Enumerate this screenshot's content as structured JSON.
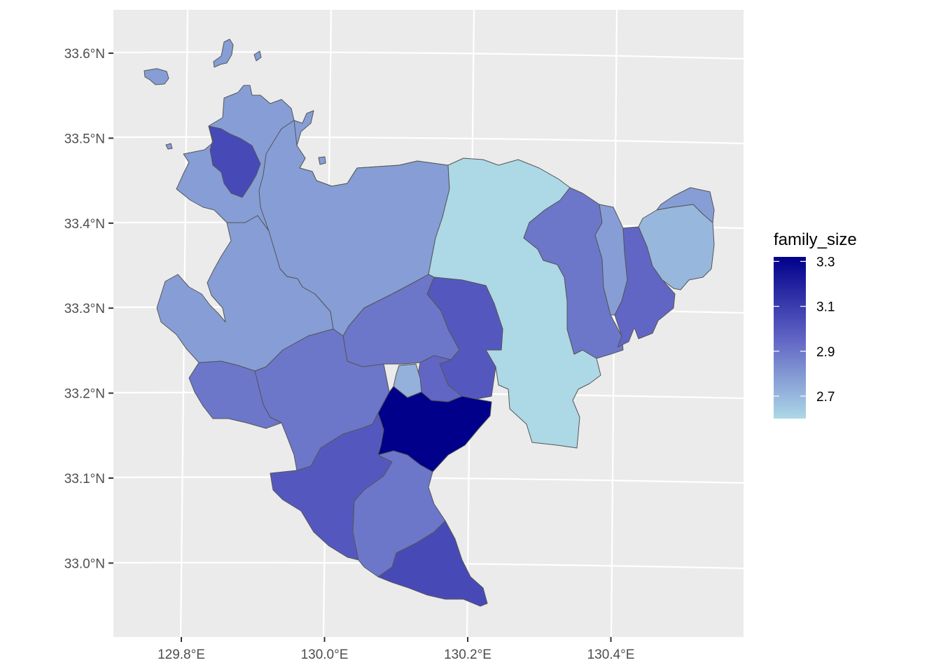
{
  "map": {
    "lat_ticks": [
      {
        "value": 33.6,
        "label": "33.6°N"
      },
      {
        "value": 33.5,
        "label": "33.5°N"
      },
      {
        "value": 33.4,
        "label": "33.4°N"
      },
      {
        "value": 33.3,
        "label": "33.3°N"
      },
      {
        "value": 33.2,
        "label": "33.2°N"
      },
      {
        "value": 33.1,
        "label": "33.1°N"
      },
      {
        "value": 33.0,
        "label": "33.0°N"
      }
    ],
    "lon_ticks": [
      {
        "value": 129.8,
        "label": "129.8°E"
      },
      {
        "value": 130.0,
        "label": "130.0°E"
      },
      {
        "value": 130.2,
        "label": "130.2°E"
      },
      {
        "value": 130.4,
        "label": "130.4°E"
      }
    ],
    "legend": {
      "title": "family_size",
      "low_color": "#add8e6",
      "high_color": "#00008b",
      "min": 2.6,
      "max": 3.32,
      "ticks": [
        {
          "value": 3.3,
          "label": "3.3"
        },
        {
          "value": 3.1,
          "label": "3.1"
        },
        {
          "value": 2.9,
          "label": "2.9"
        },
        {
          "value": 2.7,
          "label": "2.7"
        }
      ]
    },
    "colors": {
      "panel": "#ebebeb",
      "grid": "#ffffff",
      "border": "#555555"
    }
  }
}
